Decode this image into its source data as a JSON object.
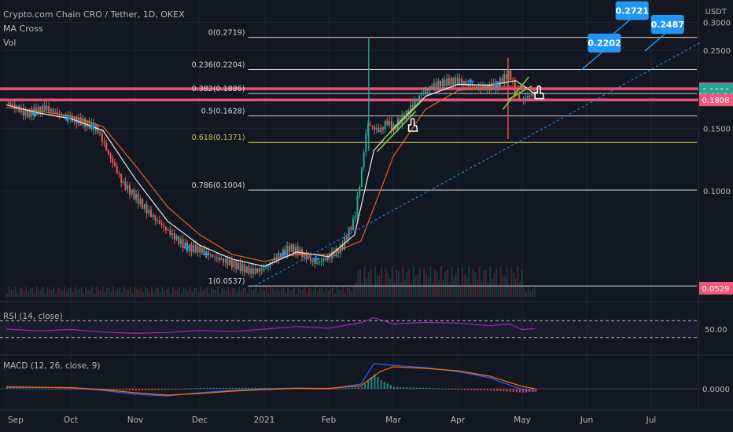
{
  "header": {
    "symbol": "Crypto.com Chain CRO / Tether, 1D, OKEX",
    "ind1": "MA Cross",
    "ind2": "Vol",
    "unit": "USDT"
  },
  "colors": {
    "bg": "#131722",
    "grid": "#1f2330",
    "up": "#26a69a",
    "down": "#ef5350",
    "fib_white": "#d1d4dc",
    "fib_yellow": "#c9c44a",
    "pink": "#f0557a",
    "blue_marker": "#2196f3",
    "ma_fast": "#e9e9e9",
    "ma_slow": "#e0621f",
    "rsi": "#9c27b0",
    "macd_line": "#2962ff",
    "signal_line": "#ff6d00",
    "trend_green": "#7cc33b"
  },
  "chart_data": {
    "type": "candlestick",
    "title": "Crypto.com Chain CRO / Tether, 1D, OKEX",
    "price_axis": {
      "scale": "log",
      "ticks": [
        0.3,
        0.25,
        0.15,
        0.1
      ],
      "tick_labels": [
        "0.3000",
        "0.2500",
        "0.1500",
        "0.1000"
      ],
      "ylim": [
        0.05,
        0.31
      ]
    },
    "x_axis": {
      "ticks": [
        "Sep",
        "Oct",
        "Nov",
        "Dec",
        "2021",
        "Feb",
        "Mar",
        "Apr",
        "May",
        "Jun",
        "Jul"
      ]
    },
    "fib_levels": [
      {
        "label": "0(0.2719)",
        "value": 0.2719,
        "color": "white"
      },
      {
        "label": "0.236(0.2204)",
        "value": 0.2204,
        "color": "white"
      },
      {
        "label": "0.382(0.1886)",
        "value": 0.1886,
        "color": "white"
      },
      {
        "label": "0.5(0.1628)",
        "value": 0.1628,
        "color": "white"
      },
      {
        "label": "0.618(0.1371)",
        "value": 0.1371,
        "color": "yellow"
      },
      {
        "label": "0.786(0.1004)",
        "value": 0.1004,
        "color": "white"
      },
      {
        "label": "1(0.0537)",
        "value": 0.0537,
        "color": "white"
      }
    ],
    "horizontal_zones": [
      0.1944,
      0.1808
    ],
    "price_tags": [
      {
        "label": "0.1944",
        "value": 0.1944,
        "color": "#f0557a"
      },
      {
        "label": "0.1920",
        "value": 0.192,
        "color": "#26a69a"
      },
      {
        "label": "10:00:26",
        "value": 0.186,
        "color": "#26a69a"
      },
      {
        "label": "0.1808",
        "value": 0.1808,
        "color": "#f0557a"
      },
      {
        "label": "0.0529",
        "value": 0.0529,
        "color": "#f0557a"
      }
    ],
    "callouts": [
      {
        "label": "0.2721",
        "value": 0.2721,
        "month_pos": 9.35
      },
      {
        "label": "0.2487",
        "value": 0.2487,
        "month_pos": 9.9
      },
      {
        "label": "0.2202",
        "value": 0.2202,
        "month_pos": 8.92
      }
    ],
    "series": [
      {
        "name": "price",
        "kind": "close_path",
        "points": [
          [
            0,
            0.178
          ],
          [
            0.15,
            0.172
          ],
          [
            0.3,
            0.165
          ],
          [
            0.45,
            0.168
          ],
          [
            0.6,
            0.172
          ],
          [
            0.8,
            0.165
          ],
          [
            1.0,
            0.16
          ],
          [
            1.2,
            0.156
          ],
          [
            1.4,
            0.15
          ],
          [
            1.6,
            0.125
          ],
          [
            1.8,
            0.105
          ],
          [
            2.0,
            0.096
          ],
          [
            2.2,
            0.087
          ],
          [
            2.4,
            0.08
          ],
          [
            2.6,
            0.074
          ],
          [
            2.8,
            0.069
          ],
          [
            3.0,
            0.068
          ],
          [
            3.2,
            0.065
          ],
          [
            3.4,
            0.063
          ],
          [
            3.6,
            0.061
          ],
          [
            3.8,
            0.059
          ],
          [
            4.0,
            0.06
          ],
          [
            4.2,
            0.065
          ],
          [
            4.4,
            0.069
          ],
          [
            4.6,
            0.066
          ],
          [
            4.8,
            0.062
          ],
          [
            5.0,
            0.065
          ],
          [
            5.2,
            0.069
          ],
          [
            5.4,
            0.083
          ],
          [
            5.5,
            0.11
          ],
          [
            5.6,
            0.155
          ],
          [
            5.7,
            0.15
          ],
          [
            5.8,
            0.148
          ],
          [
            5.9,
            0.157
          ],
          [
            6.0,
            0.15
          ],
          [
            6.2,
            0.165
          ],
          [
            6.4,
            0.185
          ],
          [
            6.6,
            0.198
          ],
          [
            6.8,
            0.203
          ],
          [
            7.0,
            0.205
          ],
          [
            7.2,
            0.198
          ],
          [
            7.4,
            0.196
          ],
          [
            7.6,
            0.199
          ],
          [
            7.8,
            0.215
          ],
          [
            7.9,
            0.188
          ],
          [
            8.0,
            0.18
          ],
          [
            8.1,
            0.186
          ],
          [
            8.2,
            0.19
          ]
        ]
      },
      {
        "name": "MA Cross",
        "kind": "ma_fast",
        "points": [
          [
            0,
            0.175
          ],
          [
            0.5,
            0.166
          ],
          [
            1.0,
            0.16
          ],
          [
            1.5,
            0.148
          ],
          [
            2.0,
            0.108
          ],
          [
            2.5,
            0.082
          ],
          [
            3.0,
            0.07
          ],
          [
            3.5,
            0.064
          ],
          [
            4.0,
            0.061
          ],
          [
            4.5,
            0.067
          ],
          [
            5.0,
            0.065
          ],
          [
            5.4,
            0.075
          ],
          [
            5.7,
            0.13
          ],
          [
            6.0,
            0.15
          ],
          [
            6.5,
            0.185
          ],
          [
            7.0,
            0.2
          ],
          [
            7.5,
            0.199
          ],
          [
            7.9,
            0.205
          ],
          [
            8.2,
            0.188
          ]
        ]
      },
      {
        "name": "MA Cross",
        "kind": "ma_slow",
        "points": [
          [
            0,
            0.172
          ],
          [
            0.5,
            0.168
          ],
          [
            1.0,
            0.163
          ],
          [
            1.5,
            0.152
          ],
          [
            2.0,
            0.118
          ],
          [
            2.5,
            0.09
          ],
          [
            3.0,
            0.075
          ],
          [
            3.5,
            0.066
          ],
          [
            4.0,
            0.063
          ],
          [
            4.5,
            0.066
          ],
          [
            5.0,
            0.066
          ],
          [
            5.5,
            0.072
          ],
          [
            5.8,
            0.1
          ],
          [
            6.0,
            0.125
          ],
          [
            6.5,
            0.17
          ],
          [
            7.0,
            0.192
          ],
          [
            7.5,
            0.197
          ],
          [
            8.0,
            0.198
          ],
          [
            8.2,
            0.192
          ]
        ]
      }
    ],
    "rsi": {
      "label": "RSI (14, close)",
      "ticks": [
        "50.00"
      ],
      "bands": [
        70,
        30
      ],
      "values": [
        [
          0,
          50
        ],
        [
          0.5,
          46
        ],
        [
          1.0,
          49
        ],
        [
          1.5,
          43
        ],
        [
          2.0,
          40
        ],
        [
          2.5,
          42
        ],
        [
          3.0,
          47
        ],
        [
          3.5,
          44
        ],
        [
          4.0,
          50
        ],
        [
          4.5,
          56
        ],
        [
          5.0,
          52
        ],
        [
          5.5,
          65
        ],
        [
          5.7,
          77
        ],
        [
          6.0,
          62
        ],
        [
          6.5,
          66
        ],
        [
          7.0,
          64
        ],
        [
          7.5,
          58
        ],
        [
          7.8,
          62
        ],
        [
          8.0,
          49
        ],
        [
          8.2,
          51
        ]
      ]
    },
    "macd": {
      "label": "MACD (12, 26, close, 9)",
      "ticks": [
        "0.0000"
      ],
      "macd": [
        [
          0,
          0.3
        ],
        [
          1.0,
          0.1
        ],
        [
          1.5,
          -0.2
        ],
        [
          2.0,
          -0.7
        ],
        [
          2.5,
          -0.9
        ],
        [
          3.0,
          -0.5
        ],
        [
          3.5,
          -0.2
        ],
        [
          4.0,
          0.0
        ],
        [
          4.5,
          0.1
        ],
        [
          5.0,
          0.0
        ],
        [
          5.5,
          0.6
        ],
        [
          5.7,
          3.2
        ],
        [
          6.0,
          3.0
        ],
        [
          6.5,
          2.7
        ],
        [
          7.0,
          2.2
        ],
        [
          7.5,
          1.4
        ],
        [
          8.0,
          -0.1
        ],
        [
          8.2,
          -0.3
        ]
      ],
      "signal": [
        [
          0,
          0.2
        ],
        [
          1.0,
          0.15
        ],
        [
          1.5,
          -0.1
        ],
        [
          2.0,
          -0.5
        ],
        [
          2.5,
          -0.8
        ],
        [
          3.0,
          -0.6
        ],
        [
          3.5,
          -0.3
        ],
        [
          4.0,
          -0.1
        ],
        [
          4.5,
          0.05
        ],
        [
          5.0,
          0.05
        ],
        [
          5.5,
          0.4
        ],
        [
          5.8,
          2.2
        ],
        [
          6.0,
          2.8
        ],
        [
          6.5,
          2.6
        ],
        [
          7.0,
          2.3
        ],
        [
          7.5,
          1.6
        ],
        [
          8.0,
          0.3
        ],
        [
          8.2,
          0.0
        ]
      ]
    }
  }
}
